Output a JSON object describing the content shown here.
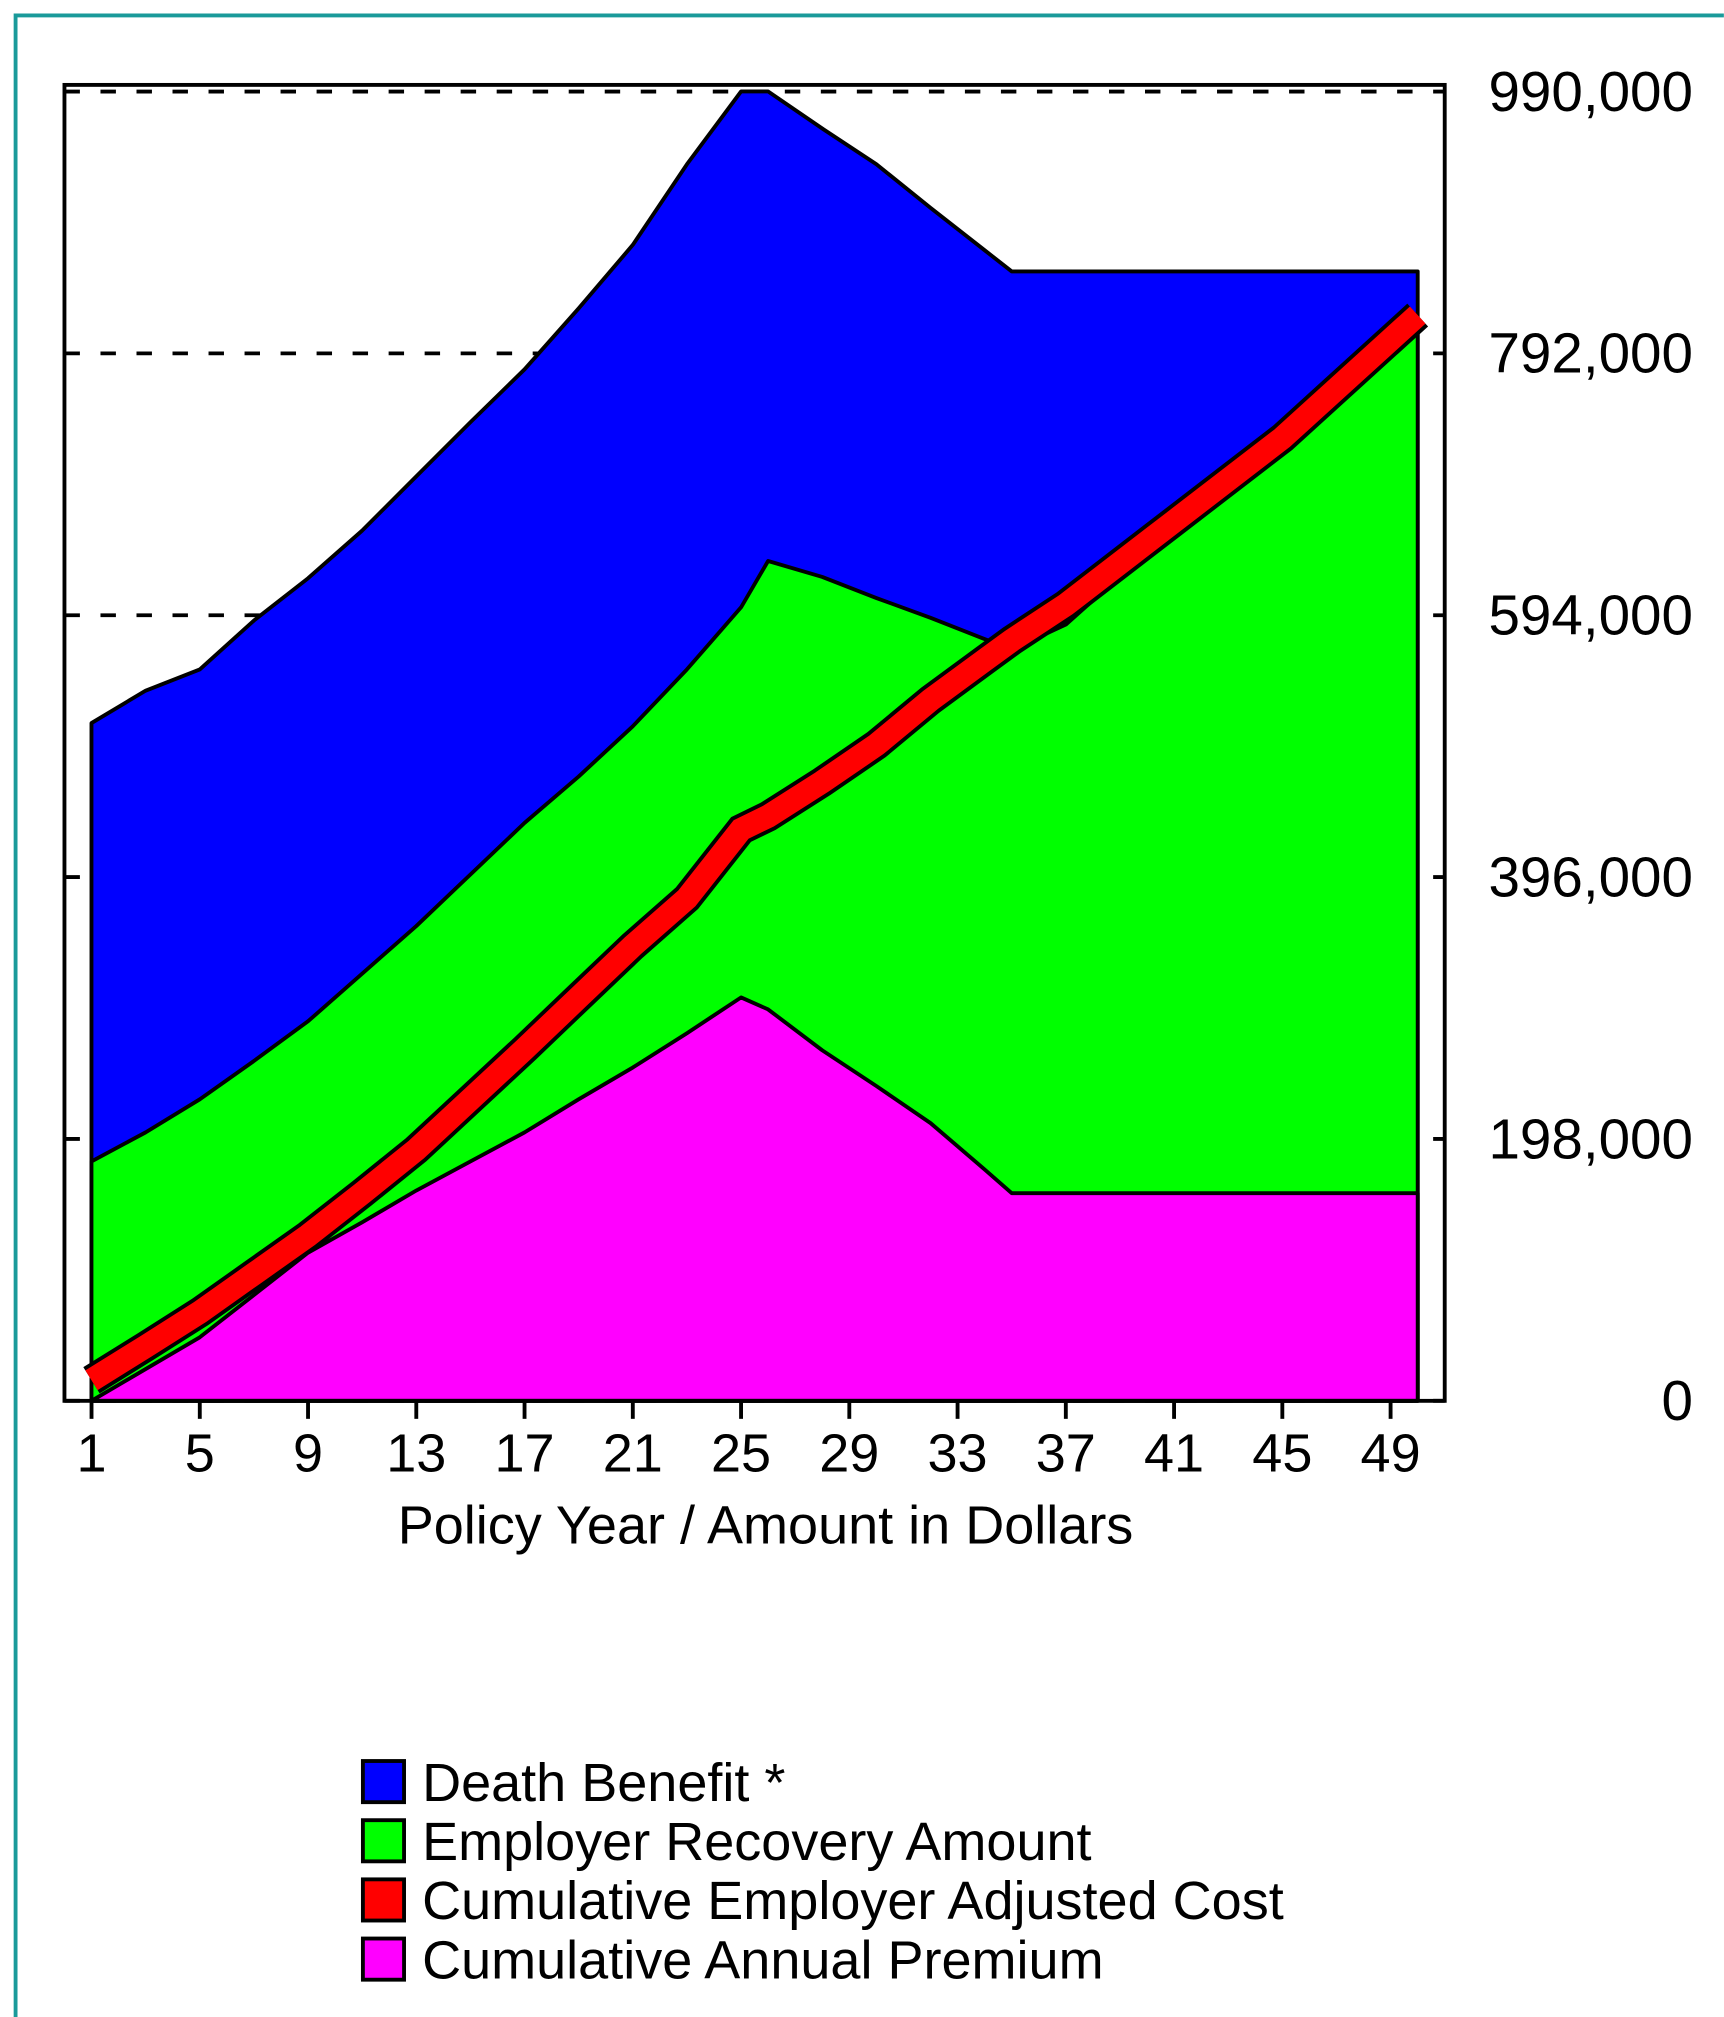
{
  "chart_data": {
    "type": "area",
    "x_label": "Policy Year / Amount in Dollars",
    "x": [
      1,
      3,
      5,
      7,
      9,
      11,
      13,
      15,
      17,
      19,
      21,
      23,
      25,
      26,
      28,
      30,
      32,
      34,
      35,
      37,
      41,
      45,
      50
    ],
    "xlim": [
      0,
      51
    ],
    "xticks": [
      1,
      5,
      9,
      13,
      17,
      21,
      25,
      29,
      33,
      37,
      41,
      45,
      49
    ],
    "ylim": [
      0,
      995000
    ],
    "yticks": [
      0,
      {
        "value": 198000,
        "label": "198,000"
      },
      {
        "value": 396000,
        "label": "396,000"
      },
      {
        "value": 594000,
        "label": "594,000"
      },
      {
        "value": 792000,
        "label": "792,000"
      },
      {
        "value": 990000,
        "label": "990,000"
      }
    ],
    "y_axis_side": "right",
    "grid": true,
    "grid_style": "dashed",
    "series": [
      {
        "name": "Death Benefit *",
        "color": "#0000ff",
        "mark": "area",
        "values": [
          512500,
          537000,
          553000,
          590000,
          622000,
          658000,
          699000,
          740000,
          780000,
          826000,
          874000,
          935000,
          990000,
          990000,
          962000,
          935000,
          902000,
          870000,
          854000,
          854000,
          854000,
          854000,
          854000
        ]
      },
      {
        "name": "Employer Recovery Amount",
        "color": "#00ff00",
        "mark": "area",
        "values": [
          181000,
          203000,
          228000,
          257000,
          287000,
          323000,
          359000,
          398000,
          437000,
          472000,
          510000,
          553000,
          600000,
          635000,
          623000,
          607000,
          592000,
          576000,
          568000,
          587000,
          660000,
          728000,
          808000
        ]
      },
      {
        "name": "Cumulative Employer Adjusted Cost",
        "color": "#ff0000",
        "mark": "line",
        "values": [
          15600,
          41000,
          67000,
          96000,
          125000,
          157000,
          190000,
          228000,
          266000,
          305000,
          344000,
          380000,
          432000,
          442000,
          468000,
          496000,
          530000,
          560000,
          575000,
          602000,
          665000,
          728000,
          821000
        ]
      },
      {
        "name": "Cumulative Annual Premium",
        "color": "#ff00ff",
        "mark": "area",
        "values": [
          0,
          24000,
          48000,
          80000,
          112000,
          135000,
          159000,
          181000,
          203000,
          228000,
          252000,
          278000,
          305000,
          296000,
          265000,
          238000,
          210000,
          175000,
          157000,
          157000,
          157000,
          157000,
          157000
        ]
      }
    ]
  }
}
